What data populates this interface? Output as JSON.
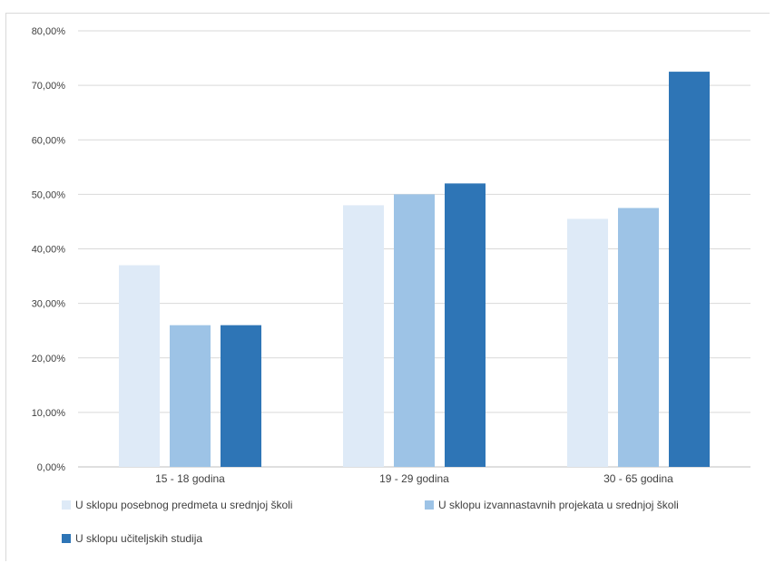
{
  "chart_data": {
    "type": "bar",
    "title": "",
    "xlabel": "",
    "ylabel": "",
    "ylim": [
      0,
      80
    ],
    "yticks": [
      0,
      10,
      20,
      30,
      40,
      50,
      60,
      70,
      80
    ],
    "ytick_labels": [
      "0,00%",
      "10,00%",
      "20,00%",
      "30,00%",
      "40,00%",
      "50,00%",
      "60,00%",
      "70,00%",
      "80,00%"
    ],
    "categories": [
      "15 - 18 godina",
      "19 - 29 godina",
      "30 - 65 godina"
    ],
    "series": [
      {
        "name": "U sklopu posebnog predmeta u srednjoj školi",
        "color": "#deeaf7",
        "values": [
          37,
          48,
          45.5
        ]
      },
      {
        "name": "U sklopu izvannastavnih projekata u srednjoj školi",
        "color": "#9dc3e6",
        "values": [
          26,
          50,
          47.5
        ]
      },
      {
        "name": "U sklopu učiteljskih studija",
        "color": "#2e75b6",
        "values": [
          26,
          52,
          72.5
        ]
      }
    ],
    "grid": true,
    "legend_position": "bottom"
  }
}
